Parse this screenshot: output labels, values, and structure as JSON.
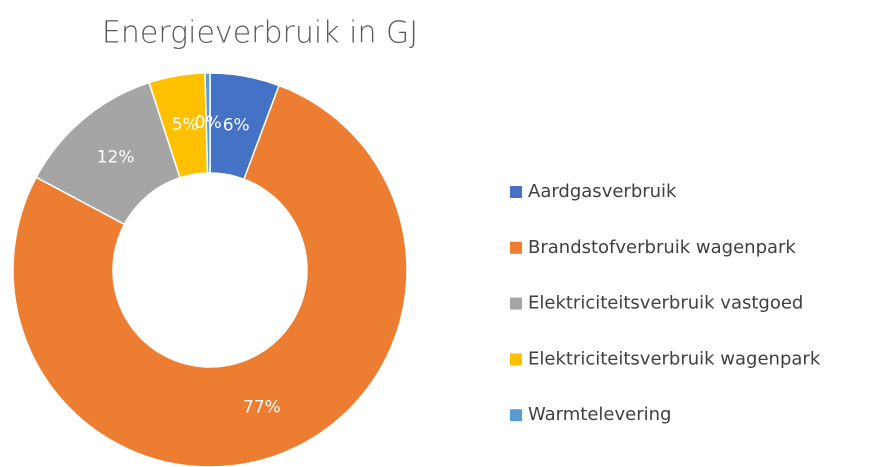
{
  "chart_data": {
    "type": "donut",
    "title": "Energieverbruik in GJ",
    "categories": [
      "Aardgasverbruik",
      "Brandstofverbruik wagenpark",
      "Elektriciteitsverbruik vastgoed",
      "Elektriciteitsverbruik wagenpark",
      "Warmtelevering"
    ],
    "values": [
      5.7,
      77.1,
      12.2,
      4.6,
      0.4
    ],
    "value_labels": [
      "6%",
      "77%",
      "12%",
      "5%",
      "0%"
    ],
    "colors": [
      "#4472c4",
      "#ed7d31",
      "#a5a5a5",
      "#ffc000",
      "#5b9bd5"
    ],
    "legend": "right"
  }
}
